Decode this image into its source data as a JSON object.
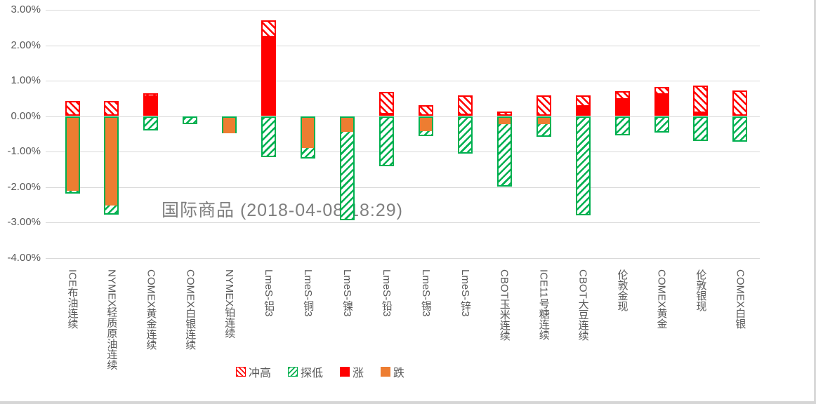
{
  "chart_data": {
    "type": "bar",
    "variant": "open-high-low-close style stacked percent bars",
    "title": "国际商品 (2018-04-08 18:29)",
    "xlabel": "",
    "ylabel": "",
    "y_axis": {
      "unit": "%",
      "min": -4,
      "max": 3,
      "ticks": [
        "3.00%",
        "2.00%",
        "1.00%",
        "0.00%",
        "-1.00%",
        "-2.00%",
        "-3.00%",
        "-4.00%"
      ],
      "tick_values": [
        3,
        2,
        1,
        0,
        -1,
        -2,
        -3,
        -4
      ]
    },
    "grid": true,
    "legend_position": "bottom",
    "categories": [
      "ICE布油连续",
      "NYMEX轻质原油连续",
      "COMEX黄金连续",
      "COMEX白银连续",
      "NYMEX铂连续",
      "LmeS-铝3",
      "LmeS-铜3",
      "LmeS-镍3",
      "LmeS-铅3",
      "LmeS-锡3",
      "LmeS-锌3",
      "CBOT玉米连续",
      "ICE11号糖连续",
      "CBOT大豆连续",
      "伦敦金现",
      "COMEX黄金",
      "伦敦银现",
      "COMEX白银"
    ],
    "series": [
      {
        "name": "冲高",
        "style": "red-hatch",
        "values": [
          0.42,
          0.42,
          0.65,
          0,
          0,
          2.7,
          0,
          0,
          0.69,
          0.3,
          0.59,
          0.13,
          0.58,
          0.59,
          0.71,
          0.82,
          0.87,
          0.73
        ]
      },
      {
        "name": "探低",
        "style": "green-hatch",
        "values": [
          -2.19,
          -2.79,
          -0.41,
          -0.23,
          -0.48,
          -1.16,
          -1.2,
          -2.93,
          -1.41,
          -0.56,
          -1.05,
          -1.98,
          -0.59,
          -2.8,
          -0.55,
          -0.47,
          -0.7,
          -0.73
        ]
      },
      {
        "name": "涨",
        "style": "solid-red",
        "values": [
          0,
          0,
          0.6,
          0,
          0,
          2.29,
          0,
          0,
          0.11,
          0,
          0.08,
          0,
          0,
          0.32,
          0.52,
          0.66,
          0.15,
          0
        ]
      },
      {
        "name": "跌",
        "style": "solid-orange",
        "values": [
          -2.1,
          -2.53,
          0,
          0,
          -0.48,
          0,
          -0.9,
          -0.45,
          0,
          -0.42,
          0,
          -0.23,
          -0.23,
          0,
          0,
          0,
          0,
          0
        ]
      }
    ],
    "colors": {
      "surge_high_red": "#ff0000",
      "probe_low_green": "#00b050",
      "rise_red": "#ff0000",
      "fall_orange": "#ed7d31",
      "gridline": "#d9d9d9",
      "axis_text": "#595959",
      "title_text": "#7f7f7f"
    }
  }
}
